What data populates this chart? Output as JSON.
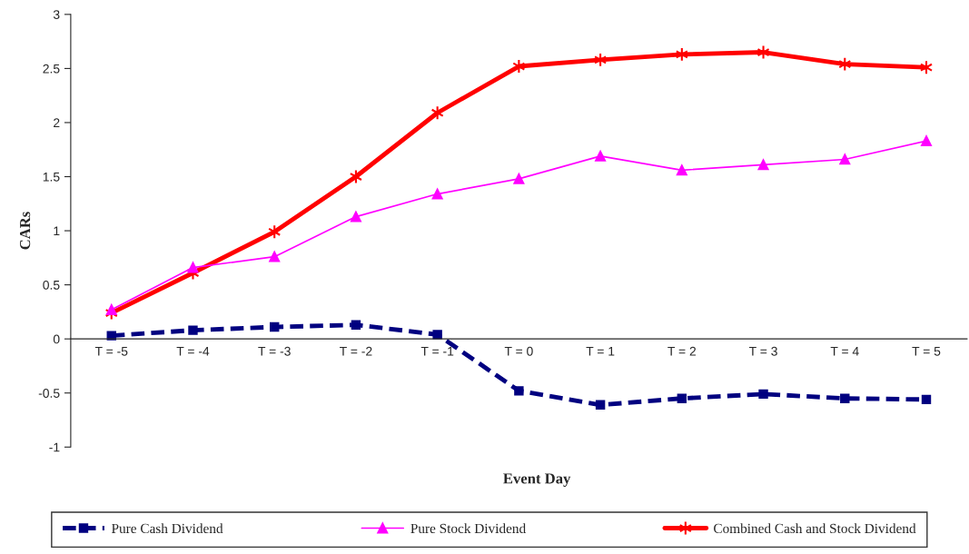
{
  "chart_data": {
    "type": "line",
    "xlabel": "Event Day",
    "ylabel": "CARs",
    "categories": [
      "T = -5",
      "T = -4",
      "T = -3",
      "T = -2",
      "T = -1",
      "T = 0",
      "T = 1",
      "T = 2",
      "T = 3",
      "T = 4",
      "T = 5"
    ],
    "ylim": [
      -1,
      3
    ],
    "yticks": [
      -1,
      -0.5,
      0,
      0.5,
      1,
      1.5,
      2,
      2.5,
      3
    ],
    "grid": false,
    "legend": "bottom",
    "series": [
      {
        "name": "Pure Cash Dividend",
        "color": "#000080",
        "marker": "square",
        "line_style": "dashed",
        "values": [
          0.03,
          0.08,
          0.11,
          0.13,
          0.04,
          -0.48,
          -0.61,
          -0.55,
          -0.51,
          -0.55,
          -0.56
        ]
      },
      {
        "name": "Pure Stock Dividend",
        "color": "#ff00ff",
        "marker": "triangle",
        "line_style": "solid",
        "values": [
          0.27,
          0.66,
          0.76,
          1.13,
          1.34,
          1.48,
          1.69,
          1.56,
          1.61,
          1.66,
          1.83
        ]
      },
      {
        "name": "Combined Cash and Stock Dividend",
        "color": "#ff0000",
        "marker": "cross",
        "line_style": "solid",
        "values": [
          0.24,
          0.61,
          0.99,
          1.5,
          2.09,
          2.52,
          2.58,
          2.63,
          2.65,
          2.54,
          2.51
        ]
      }
    ]
  }
}
